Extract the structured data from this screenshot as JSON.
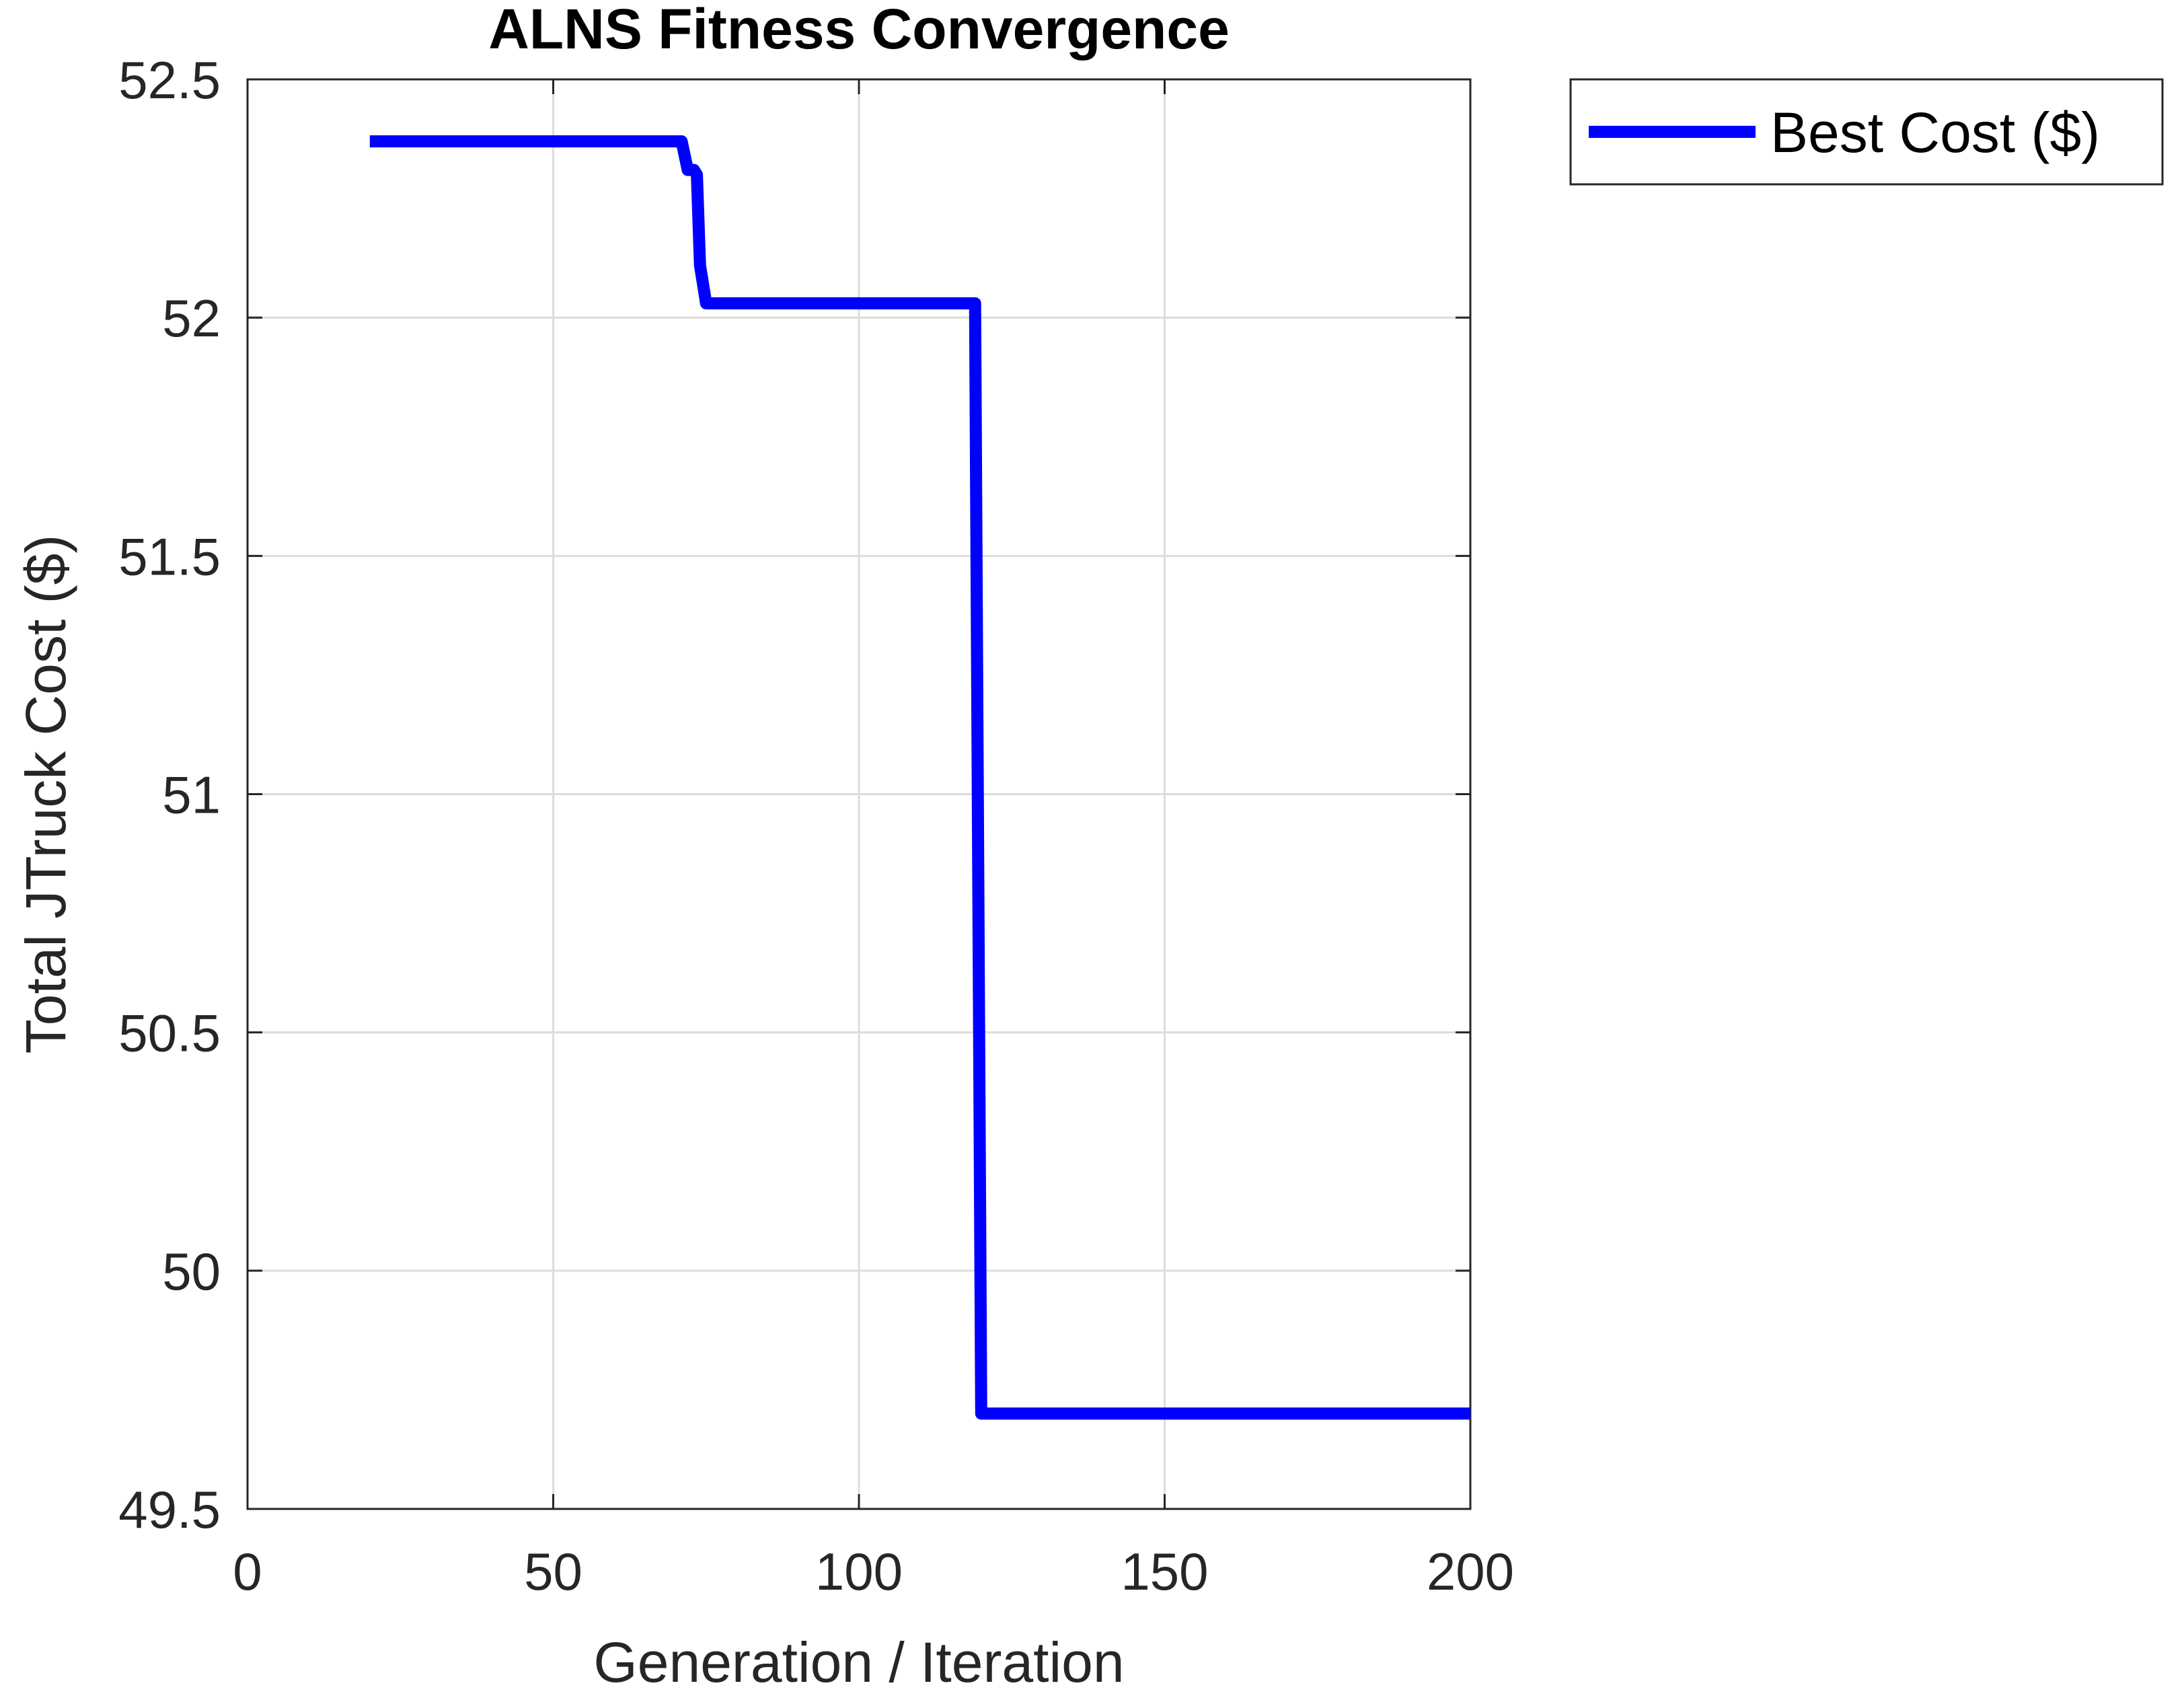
{
  "chart_data": {
    "type": "line",
    "title": "ALNS Fitness Convergence",
    "xlabel": "Generation / Iteration",
    "ylabel": "Total JTruck Cost ($)",
    "xlim": [
      0,
      200
    ],
    "ylim": [
      49.5,
      52.5
    ],
    "xticks": [
      0,
      50,
      100,
      150,
      200
    ],
    "xtick_labels": [
      "0",
      "50",
      "100",
      "150",
      "200"
    ],
    "yticks": [
      49.5,
      50,
      50.5,
      51,
      51.5,
      52,
      52.5
    ],
    "ytick_labels": [
      "49.5",
      "50",
      "50.5",
      "51",
      "51.5",
      "52",
      "52.5"
    ],
    "grid": true,
    "legend_position": "outside-top-right",
    "series": [
      {
        "name": "Best Cost ($)",
        "color": "#0000ff",
        "x": [
          20,
          71,
          72,
          73,
          73.5,
          74,
          75,
          118,
          119,
          120,
          121,
          200
        ],
        "y": [
          52.37,
          52.37,
          52.31,
          52.31,
          52.3,
          52.11,
          52.03,
          52.03,
          52.03,
          49.7,
          49.7,
          49.7
        ]
      }
    ]
  }
}
